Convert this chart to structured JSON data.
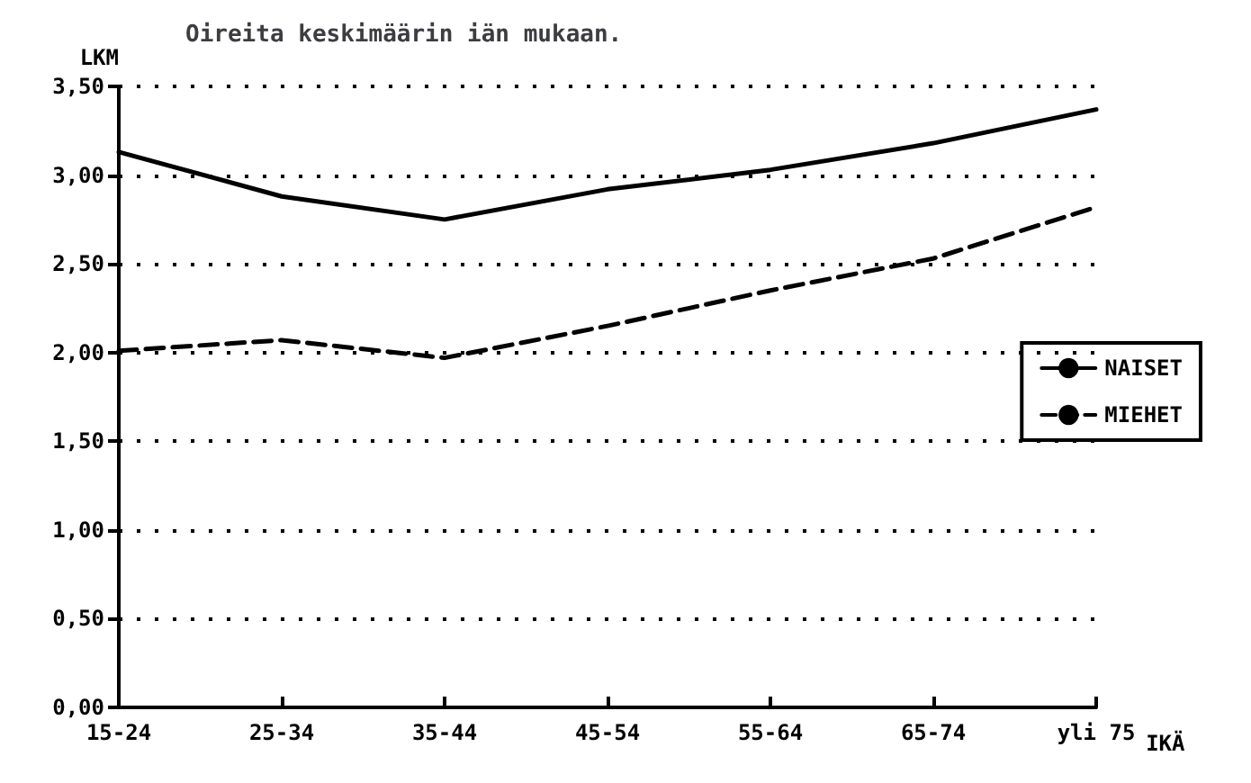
{
  "chart_data": {
    "type": "line",
    "title": "Oireita keskimäärin iän mukaan.",
    "ylabel": "LKM",
    "xlabel": "IKÄ",
    "categories": [
      "15-24",
      "25-34",
      "35-44",
      "45-54",
      "55-64",
      "65-74",
      "yli 75"
    ],
    "series": [
      {
        "name": "NAISET",
        "color": "#000000",
        "line_style": "solid",
        "values": [
          3.13,
          2.88,
          2.75,
          2.92,
          3.03,
          3.18,
          3.37
        ]
      },
      {
        "name": "MIEHET",
        "color": "#000000",
        "line_style": "dashed",
        "values": [
          2.01,
          2.07,
          1.97,
          2.15,
          2.35,
          2.53,
          2.82
        ]
      }
    ],
    "ylim": [
      0,
      3.5
    ],
    "yticks": [
      {
        "value": 0,
        "label": "0,00"
      },
      {
        "value": 0.5,
        "label": "0,50"
      },
      {
        "value": 1,
        "label": "1,00"
      },
      {
        "value": 1.5,
        "label": "1,50"
      },
      {
        "value": 2,
        "label": "2,00"
      },
      {
        "value": 2.5,
        "label": "2,50"
      },
      {
        "value": 3,
        "label": "3,00"
      },
      {
        "value": 3.5,
        "label": "3,50"
      }
    ],
    "grid": "y",
    "legend": "right",
    "marker": "none"
  }
}
